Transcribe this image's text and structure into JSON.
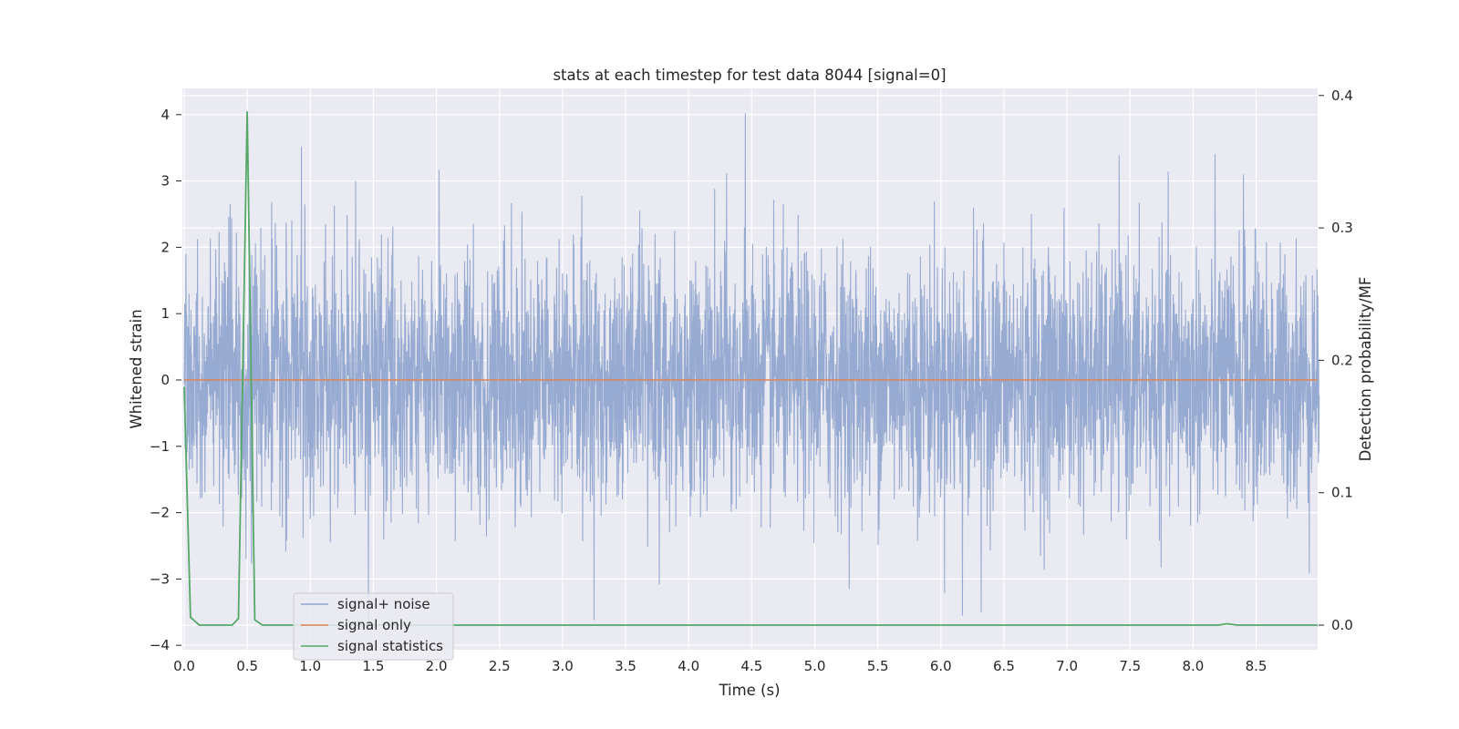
{
  "chart_data": {
    "type": "line",
    "title": "stats at each timestep for test data 8044 [signal=0]",
    "xlabel": "Time (s)",
    "ylabel": "Whitened strain",
    "ylabel_right": "Detection probability/MF",
    "xlim": [
      0.0,
      9.0
    ],
    "ylim": [
      -4.2,
      4.4
    ],
    "ylim_right": [
      -0.018,
      0.405
    ],
    "x_ticks": [
      "0.0",
      "0.5",
      "1.0",
      "1.5",
      "2.0",
      "2.5",
      "3.0",
      "3.5",
      "4.0",
      "4.5",
      "5.0",
      "5.5",
      "6.0",
      "6.5",
      "7.0",
      "7.5",
      "8.0",
      "8.5"
    ],
    "y_ticks": [
      "4",
      "3",
      "2",
      "1",
      "0",
      "−1",
      "−2",
      "−3",
      "−4"
    ],
    "y_tick_values": [
      4,
      3,
      2,
      1,
      0,
      -1,
      -2,
      -3,
      -4
    ],
    "y_right_ticks": [
      "0.4",
      "0.3",
      "0.2",
      "0.1",
      "0.0"
    ],
    "y_right_tick_values": [
      0.4,
      0.3,
      0.2,
      0.1,
      0.0
    ],
    "grid": true,
    "legend_position": "lower-left",
    "series": [
      {
        "name": "signal+ noise",
        "color": "#92a6cf",
        "axis": "left",
        "description_range": [
          -3.6,
          4.0
        ],
        "peaks": [
          {
            "x": 0.93,
            "y": 3.52
          },
          {
            "x": 1.36,
            "y": 3.0
          },
          {
            "x": 2.02,
            "y": 3.17
          },
          {
            "x": 4.45,
            "y": 4.02
          },
          {
            "x": 4.3,
            "y": 3.12
          },
          {
            "x": 8.4,
            "y": 3.1
          },
          {
            "x": 3.25,
            "y": -3.62
          },
          {
            "x": 6.17,
            "y": -3.55
          },
          {
            "x": 6.32,
            "y": -3.5
          },
          {
            "x": 1.46,
            "y": -3.7
          }
        ]
      },
      {
        "name": "signal only",
        "color": "#dd8452",
        "axis": "left",
        "x": [
          0.0,
          9.0
        ],
        "y": [
          0.0,
          0.0
        ]
      },
      {
        "name": "signal statistics",
        "color": "#55a868",
        "axis": "right",
        "x": [
          0.0,
          0.05,
          0.12,
          0.25,
          0.38,
          0.43,
          0.5,
          0.56,
          0.62,
          0.75,
          1.0,
          2.0,
          4.0,
          6.0,
          8.0,
          8.2,
          8.27,
          8.35,
          9.0
        ],
        "y": [
          0.18,
          0.006,
          0.0,
          0.0,
          0.0,
          0.005,
          0.388,
          0.004,
          0.0,
          0.0,
          0.0,
          0.0,
          0.0,
          0.0,
          0.0,
          0.0,
          0.001,
          0.0,
          0.0
        ]
      }
    ]
  }
}
